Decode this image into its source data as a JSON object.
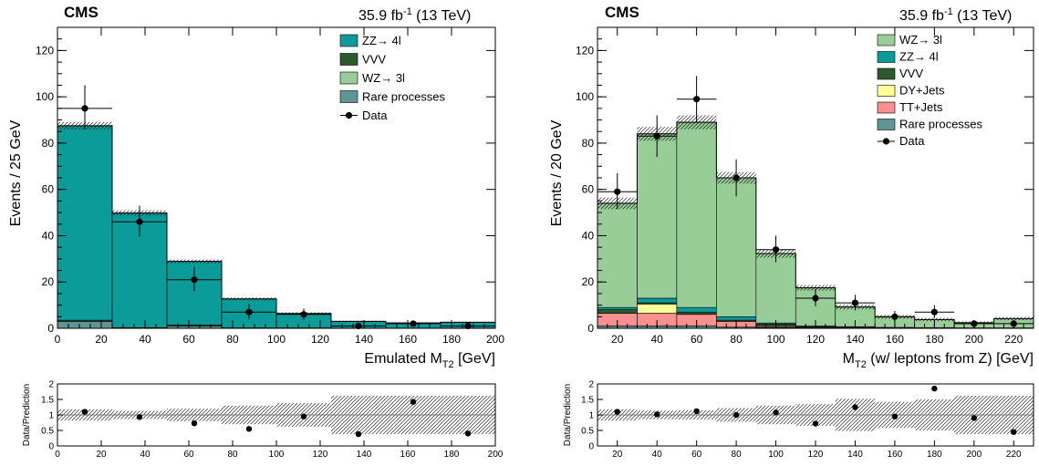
{
  "colors": {
    "ZZ4l": "#0b9c9a",
    "VVV": "#2d5a2d",
    "WZ3l": "#98cd98",
    "Rare": "#5f9595",
    "DY": "#ffff99",
    "TT": "#f99090"
  },
  "chart_data": [
    {
      "type": "bar",
      "experiment": "CMS",
      "lumi_value": "35.9 fb",
      "lumi_exp": "-1",
      "lumi_energy": " (13 TeV)",
      "xlabel": "Emulated M",
      "xlabel_sub": "T2",
      "xlabel_unit": " [GeV]",
      "ylabel": "Events / 25 GeV",
      "ratio_ylabel": "Data/Prediction",
      "xlim": [
        0,
        200
      ],
      "ylim": [
        0,
        130
      ],
      "ratio_ylim": [
        0,
        2
      ],
      "xticks": [
        0,
        20,
        40,
        60,
        80,
        100,
        120,
        140,
        160,
        180,
        200
      ],
      "yticks": [
        0,
        20,
        40,
        60,
        80,
        100,
        120
      ],
      "ratio_yticks": [
        "0",
        "0.5",
        "1",
        "1.5",
        "2"
      ],
      "ratio_xticks": [
        0,
        20,
        40,
        60,
        80,
        100,
        120,
        140,
        160,
        180,
        200
      ],
      "bin_edges": [
        0,
        25,
        50,
        75,
        100,
        125,
        150,
        175,
        200
      ],
      "series": [
        {
          "name": "Rare processes",
          "color_key": "Rare",
          "values": [
            3,
            0,
            1,
            0,
            0,
            0,
            0,
            0
          ]
        },
        {
          "name": "WZ→ 3l",
          "color_key": "WZ3l",
          "values": [
            0,
            0,
            0,
            0,
            0,
            0,
            0,
            0
          ]
        },
        {
          "name": "VVV",
          "color_key": "VVV",
          "values": [
            0.5,
            0.3,
            0.4,
            0.2,
            0.2,
            0.1,
            0.1,
            0.1
          ]
        },
        {
          "name": "ZZ→ 4l",
          "color_key": "ZZ4l",
          "values": [
            84,
            49.5,
            27.5,
            12.5,
            6.2,
            2.9,
            2.2,
            2.5
          ]
        }
      ],
      "unc": [
        1.6,
        1.2,
        0.8,
        0.6,
        0.5,
        0.3,
        0.3,
        0.3
      ],
      "data": {
        "x": [
          12.5,
          37.5,
          62.5,
          87.5,
          112.5,
          137.5,
          162.5,
          187.5
        ],
        "y": [
          95,
          46,
          21,
          7,
          6,
          1,
          2,
          1
        ],
        "yerr_up": [
          10,
          7,
          5.5,
          3.5,
          2.5,
          0,
          0,
          0
        ],
        "yerr_down": [
          9,
          6.5,
          5,
          3,
          2.3,
          0,
          0,
          0
        ],
        "xerr": 12.5
      },
      "legend": [
        {
          "label": "ZZ→ 4l",
          "kind": "box",
          "color_key": "ZZ4l"
        },
        {
          "label": "VVV",
          "kind": "box",
          "color_key": "VVV"
        },
        {
          "label": "WZ→ 3l",
          "kind": "box",
          "color_key": "WZ3l"
        },
        {
          "label": "Rare processes",
          "kind": "box",
          "color_key": "Rare"
        },
        {
          "label": "Data",
          "kind": "marker"
        }
      ],
      "ratio": {
        "x": [
          12.5,
          37.5,
          62.5,
          87.5,
          112.5,
          137.5,
          162.5,
          187.5
        ],
        "y": [
          1.1,
          0.93,
          0.73,
          0.55,
          0.95,
          0.38,
          1.42,
          0.4
        ],
        "band": [
          0.18,
          0.13,
          0.2,
          0.3,
          0.38,
          0.62,
          0.62,
          0.62
        ]
      }
    },
    {
      "type": "bar",
      "experiment": "CMS",
      "lumi_value": "35.9 fb",
      "lumi_exp": "-1",
      "lumi_energy": " (13 TeV)",
      "xlabel": "M",
      "xlabel_sub": "T2",
      "xlabel_unit": " (w/ leptons from Z) [GeV]",
      "ylabel": "Events / 20 GeV",
      "ratio_ylabel": "Data/Prediction",
      "xlim": [
        10,
        230
      ],
      "ylim": [
        0,
        130
      ],
      "ratio_ylim": [
        0,
        2
      ],
      "xticks": [
        20,
        40,
        60,
        80,
        100,
        120,
        140,
        160,
        180,
        200,
        220
      ],
      "yticks": [
        0,
        20,
        40,
        60,
        80,
        100,
        120
      ],
      "ratio_yticks": [
        "0",
        "0.5",
        "1",
        "1.5",
        "2"
      ],
      "ratio_xticks": [
        20,
        40,
        60,
        80,
        100,
        120,
        140,
        160,
        180,
        200,
        220
      ],
      "bin_edges": [
        10,
        30,
        50,
        70,
        90,
        110,
        130,
        150,
        170,
        190,
        210,
        230
      ],
      "series": [
        {
          "name": "Rare processes",
          "color_key": "Rare",
          "values": [
            1,
            1,
            1,
            0.5,
            0.3,
            0.2,
            0.2,
            0.1,
            0.1,
            0,
            0
          ]
        },
        {
          "name": "TT+Jets",
          "color_key": "TT",
          "values": [
            5.5,
            5.5,
            5,
            2.5,
            0.5,
            0,
            0,
            0,
            0,
            0,
            0
          ]
        },
        {
          "name": "DY+Jets",
          "color_key": "DY",
          "values": [
            0,
            4,
            0,
            0,
            0,
            0,
            0,
            0,
            0,
            0,
            0
          ]
        },
        {
          "name": "VVV",
          "color_key": "VVV",
          "values": [
            1.5,
            0.5,
            1,
            0.5,
            1,
            0.5,
            0.3,
            0.2,
            0.1,
            0.1,
            0.1
          ]
        },
        {
          "name": "ZZ→ 4l",
          "color_key": "ZZ4l",
          "values": [
            1,
            2,
            2,
            1.5,
            0.5,
            0.3,
            0.2,
            0.1,
            0.1,
            0.1,
            0.1
          ]
        },
        {
          "name": "WZ→ 3l",
          "color_key": "WZ3l",
          "values": [
            45,
            71,
            80,
            60,
            30,
            16.5,
            8.5,
            4.5,
            3.5,
            2.2,
            4
          ]
        }
      ],
      "unc": [
        2.5,
        3,
        3,
        2.5,
        1.8,
        1.2,
        1,
        0.8,
        0.7,
        0.6,
        0.7
      ],
      "data": {
        "x": [
          20,
          40,
          60,
          80,
          100,
          120,
          140,
          160,
          180,
          200,
          220
        ],
        "y": [
          59,
          83,
          99,
          65,
          34,
          13,
          11,
          5,
          7,
          2,
          2
        ],
        "yerr_up": [
          8,
          9,
          10,
          8,
          6,
          4,
          3.5,
          2.5,
          3,
          0,
          0
        ],
        "yerr_down": [
          7.5,
          9,
          10,
          8,
          5.5,
          3.5,
          3.3,
          2.2,
          2.6,
          0,
          0
        ],
        "xerr": 10
      },
      "legend": [
        {
          "label": "WZ→ 3l",
          "kind": "box",
          "color_key": "WZ3l"
        },
        {
          "label": "ZZ→ 4l",
          "kind": "box",
          "color_key": "ZZ4l"
        },
        {
          "label": "VVV",
          "kind": "box",
          "color_key": "VVV"
        },
        {
          "label": "DY+Jets",
          "kind": "box",
          "color_key": "DY"
        },
        {
          "label": "TT+Jets",
          "kind": "box",
          "color_key": "TT"
        },
        {
          "label": "Rare processes",
          "kind": "box",
          "color_key": "Rare"
        },
        {
          "label": "Data",
          "kind": "marker"
        }
      ],
      "ratio": {
        "x": [
          20,
          40,
          60,
          80,
          100,
          120,
          140,
          160,
          180,
          200,
          220
        ],
        "y": [
          1.1,
          1.02,
          1.12,
          1.0,
          1.08,
          0.72,
          1.25,
          0.95,
          1.85,
          0.9,
          0.45
        ],
        "band": [
          0.18,
          0.14,
          0.15,
          0.22,
          0.3,
          0.35,
          0.52,
          0.42,
          0.5,
          0.62,
          0.62
        ]
      }
    }
  ]
}
